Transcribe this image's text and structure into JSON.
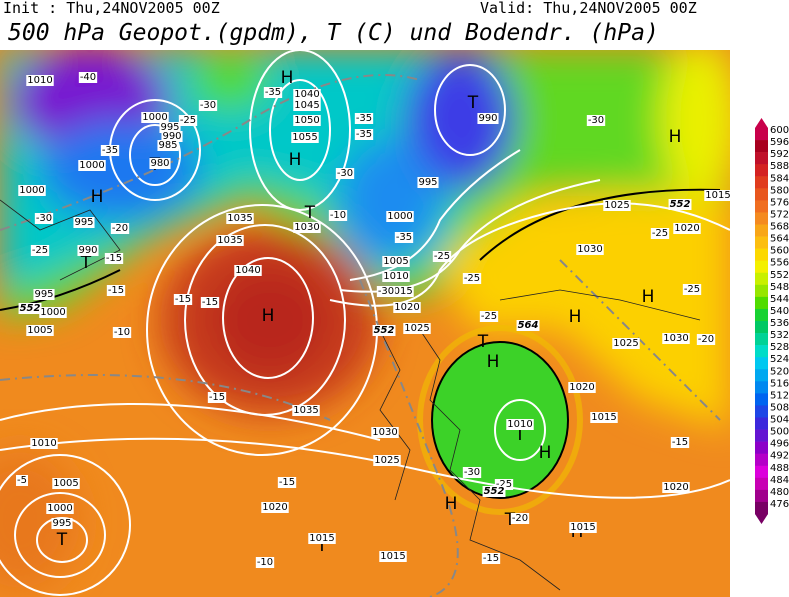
{
  "header": {
    "init": "Init : Thu,24NOV2005 00Z",
    "valid": "Valid: Thu,24NOV2005 00Z",
    "title": "500 hPa Geopot.(gpdm), T (C) und Bodendr. (hPa)"
  },
  "colorbar": {
    "ticks": [
      600,
      596,
      592,
      588,
      584,
      580,
      576,
      572,
      568,
      564,
      560,
      556,
      552,
      548,
      544,
      540,
      536,
      532,
      528,
      524,
      520,
      516,
      512,
      508,
      504,
      500,
      496,
      492,
      488,
      484,
      480,
      476
    ],
    "colors": [
      "#c8004a",
      "#a8001e",
      "#c0102a",
      "#d42222",
      "#e03c1e",
      "#e8561e",
      "#f06e20",
      "#f48a20",
      "#f8a618",
      "#fcbe10",
      "#fcd800",
      "#f4f000",
      "#c8f000",
      "#96e600",
      "#50dc00",
      "#18d232",
      "#00c864",
      "#00d296",
      "#00dcc8",
      "#00c8f0",
      "#00a8f0",
      "#0088f0",
      "#0064f0",
      "#1e46e6",
      "#3c28dc",
      "#6414d2",
      "#8c00c8",
      "#b400c8",
      "#dc00dc",
      "#c800b4",
      "#a0008c",
      "#780064"
    ]
  },
  "map": {
    "pressure_centers": [
      "H",
      "H",
      "H",
      "H",
      "H",
      "H",
      "H",
      "H",
      "H",
      "H",
      "H",
      "T",
      "T",
      "T",
      "T",
      "T",
      "T",
      "T",
      "T",
      "T"
    ],
    "isobar_labels": [
      "1010",
      "1040",
      "1045",
      "1050",
      "1055",
      "1000",
      "995",
      "990",
      "985",
      "980",
      "1000",
      "1000",
      "995",
      "990",
      "995",
      "1000",
      "1005",
      "1035",
      "1030",
      "1035",
      "1040",
      "1035",
      "1030",
      "1025",
      "1020",
      "1010",
      "1005",
      "1000",
      "995",
      "1015",
      "1015",
      "1000",
      "995",
      "990",
      "1005",
      "1010",
      "1015",
      "1020",
      "1025",
      "1025",
      "1030",
      "1020",
      "1025",
      "1030",
      "1020",
      "1015",
      "1010",
      "1020",
      "1015",
      "1015"
    ],
    "temperature_labels": [
      "-40",
      "-30",
      "-25",
      "-35",
      "-35",
      "-35",
      "-35",
      "-30",
      "-10",
      "-35",
      "-25",
      "-25",
      "-20",
      "-15",
      "-15",
      "-30",
      "-25",
      "-10",
      "-15",
      "-15",
      "-15",
      "-15",
      "-10",
      "-5",
      "-30",
      "-25",
      "-20",
      "-15",
      "-15",
      "-20",
      "-25",
      "-25",
      "-30",
      "-25",
      "-30"
    ],
    "height_labels": [
      "552",
      "552",
      "564",
      "552",
      "552"
    ]
  }
}
